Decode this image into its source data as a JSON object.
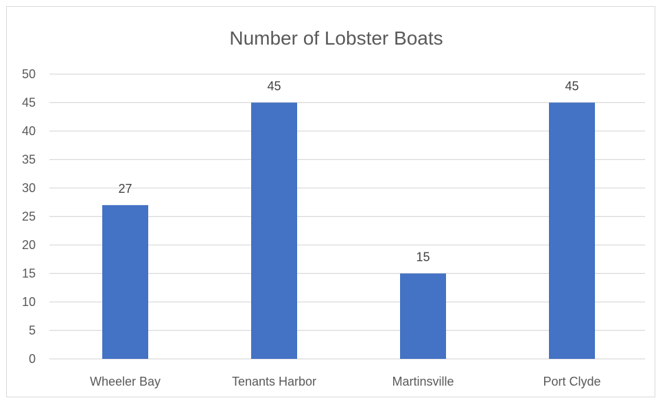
{
  "chart_data": {
    "type": "bar",
    "title": "Number of Lobster Boats",
    "xlabel": "",
    "ylabel": "",
    "categories": [
      "Wheeler Bay",
      "Tenants Harbor",
      "Martinsville",
      "Port Clyde"
    ],
    "values": [
      27,
      45,
      15,
      45
    ],
    "data_labels": [
      "27",
      "45",
      "15",
      "45"
    ],
    "ylim": [
      0,
      50
    ],
    "yticks": [
      0,
      5,
      10,
      15,
      20,
      25,
      30,
      35,
      40,
      45,
      50
    ],
    "ytick_labels": [
      "0",
      "5",
      "10",
      "15",
      "20",
      "25",
      "30",
      "35",
      "40",
      "45",
      "50"
    ],
    "grid": true,
    "legend": "none",
    "bar_color": "#4472C4",
    "grid_color": "#d9d9d9"
  }
}
